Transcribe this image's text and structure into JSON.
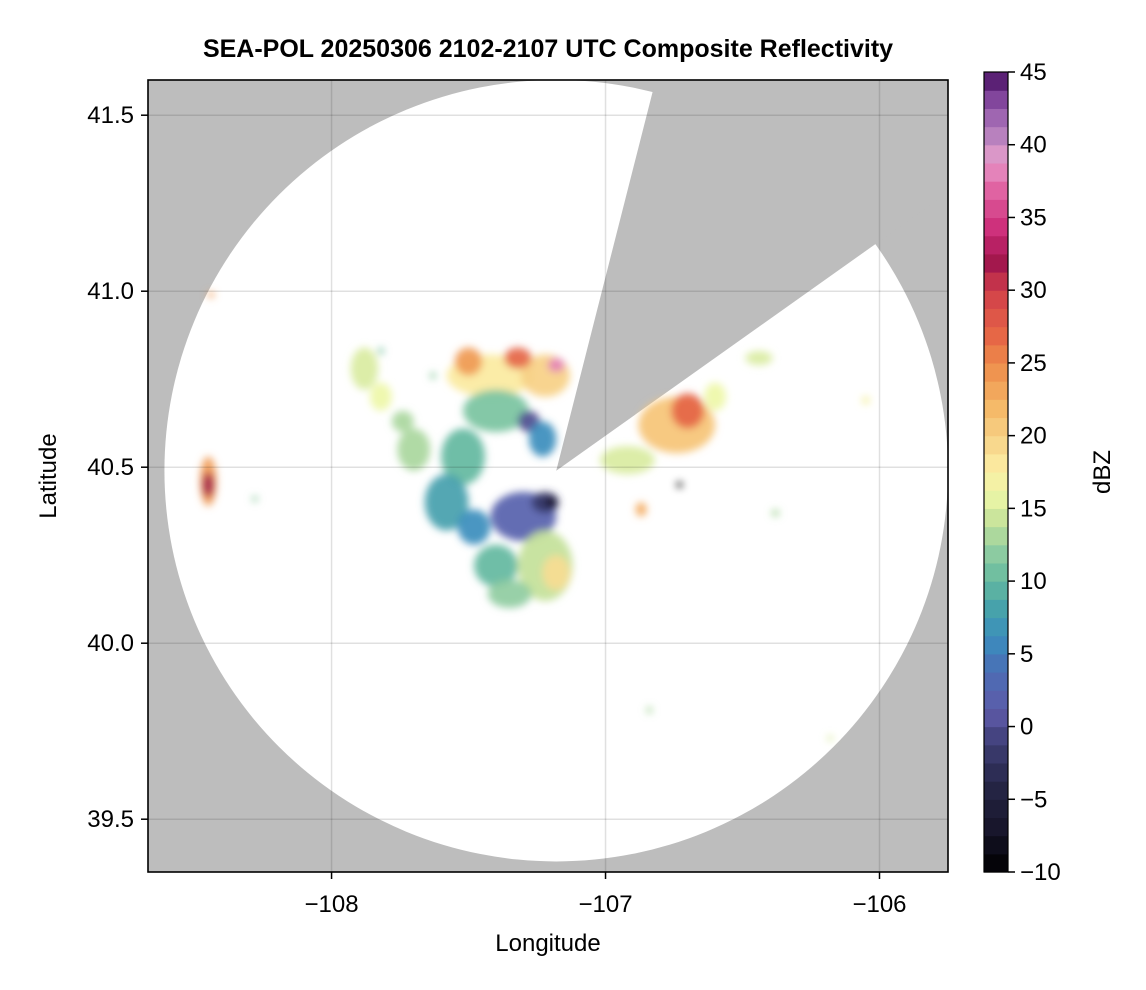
{
  "chart_data": {
    "type": "heatmap",
    "title": "SEA-POL 20250306 2102-2107 UTC Composite Reflectivity",
    "xlabel": "Longitude",
    "ylabel": "Latitude",
    "xlim": [
      -108.67,
      -105.75
    ],
    "ylim": [
      39.35,
      41.6
    ],
    "x_ticks": [
      -108,
      -107,
      -106
    ],
    "x_tick_labels": [
      "−108",
      "−107",
      "−106"
    ],
    "y_ticks": [
      39.5,
      40.0,
      40.5,
      41.0,
      41.5
    ],
    "y_tick_labels": [
      "39.5",
      "40.0",
      "40.5",
      "41.0",
      "41.5"
    ],
    "grid": true,
    "background_color": "#bdbdbd",
    "radar": {
      "center_lon": -107.18,
      "center_lat": 40.49,
      "range_lon": 1.43,
      "range_lat": 1.11,
      "blocked_sectors": [
        {
          "from_lon": -106.84,
          "from_lat": 41.53
        },
        {
          "to_lon": -106.04,
          "to_lat": 41.12
        }
      ]
    },
    "colorbar": {
      "label": "dBZ",
      "range": [
        -10,
        45
      ],
      "ticks": [
        45,
        40,
        35,
        30,
        25,
        20,
        15,
        10,
        5,
        0,
        -5,
        -10
      ],
      "tick_labels": [
        "45",
        "40",
        "35",
        "30",
        "25",
        "20",
        "15",
        "10",
        "5",
        "0",
        "−5",
        "−10"
      ],
      "levels": 44,
      "stops": [
        [
          -10,
          "#000000"
        ],
        [
          -7,
          "#17152b"
        ],
        [
          -4,
          "#262646"
        ],
        [
          -1,
          "#3f3f78"
        ],
        [
          1,
          "#5e5aa8"
        ],
        [
          4,
          "#4a6fb6"
        ],
        [
          6,
          "#3b8dbd"
        ],
        [
          8,
          "#45a0ac"
        ],
        [
          10,
          "#63b99f"
        ],
        [
          12,
          "#8fcca1"
        ],
        [
          14,
          "#c3e199"
        ],
        [
          16,
          "#eef7a8"
        ],
        [
          18,
          "#fbeaa0"
        ],
        [
          20,
          "#f7d085"
        ],
        [
          22,
          "#f5b867"
        ],
        [
          25,
          "#ee8b4a"
        ],
        [
          27,
          "#e56546"
        ],
        [
          30,
          "#d13f4a"
        ],
        [
          32,
          "#a0154d"
        ],
        [
          34,
          "#cb2a76"
        ],
        [
          37,
          "#e165a4"
        ],
        [
          39,
          "#e79bcb"
        ],
        [
          40,
          "#c48fc4"
        ],
        [
          42,
          "#9c63b0"
        ],
        [
          44,
          "#6e2f8c"
        ],
        [
          45,
          "#3a0a4e"
        ]
      ]
    },
    "echo_cells": [
      {
        "lon": -107.42,
        "lat": 40.76,
        "rx": 0.16,
        "ry": 0.06,
        "dbz": 18
      },
      {
        "lon": -107.22,
        "lat": 40.76,
        "rx": 0.09,
        "ry": 0.06,
        "dbz": 20
      },
      {
        "lon": -107.5,
        "lat": 40.8,
        "rx": 0.05,
        "ry": 0.04,
        "dbz": 24
      },
      {
        "lon": -107.32,
        "lat": 40.81,
        "rx": 0.05,
        "ry": 0.03,
        "dbz": 27
      },
      {
        "lon": -107.18,
        "lat": 40.79,
        "rx": 0.03,
        "ry": 0.02,
        "dbz": 38
      },
      {
        "lon": -107.4,
        "lat": 40.66,
        "rx": 0.12,
        "ry": 0.06,
        "dbz": 11
      },
      {
        "lon": -107.28,
        "lat": 40.63,
        "rx": 0.04,
        "ry": 0.03,
        "dbz": 0
      },
      {
        "lon": -107.23,
        "lat": 40.58,
        "rx": 0.05,
        "ry": 0.05,
        "dbz": 6
      },
      {
        "lon": -107.52,
        "lat": 40.53,
        "rx": 0.08,
        "ry": 0.08,
        "dbz": 10
      },
      {
        "lon": -107.7,
        "lat": 40.55,
        "rx": 0.06,
        "ry": 0.06,
        "dbz": 13
      },
      {
        "lon": -107.58,
        "lat": 40.4,
        "rx": 0.08,
        "ry": 0.08,
        "dbz": 8
      },
      {
        "lon": -107.48,
        "lat": 40.33,
        "rx": 0.06,
        "ry": 0.05,
        "dbz": 6
      },
      {
        "lon": -107.3,
        "lat": 40.36,
        "rx": 0.12,
        "ry": 0.07,
        "dbz": 2
      },
      {
        "lon": -107.22,
        "lat": 40.4,
        "rx": 0.05,
        "ry": 0.03,
        "dbz": -2
      },
      {
        "lon": -107.2,
        "lat": 40.4,
        "rx": 0.02,
        "ry": 0.015,
        "dbz": -8
      },
      {
        "lon": -107.4,
        "lat": 40.22,
        "rx": 0.08,
        "ry": 0.06,
        "dbz": 10
      },
      {
        "lon": -107.22,
        "lat": 40.22,
        "rx": 0.1,
        "ry": 0.1,
        "dbz": 14
      },
      {
        "lon": -107.18,
        "lat": 40.2,
        "rx": 0.05,
        "ry": 0.05,
        "dbz": 19
      },
      {
        "lon": -107.35,
        "lat": 40.14,
        "rx": 0.08,
        "ry": 0.04,
        "dbz": 12
      },
      {
        "lon": -107.88,
        "lat": 40.78,
        "rx": 0.05,
        "ry": 0.06,
        "dbz": 15
      },
      {
        "lon": -107.82,
        "lat": 40.7,
        "rx": 0.04,
        "ry": 0.04,
        "dbz": 16
      },
      {
        "lon": -107.74,
        "lat": 40.63,
        "rx": 0.04,
        "ry": 0.03,
        "dbz": 13
      },
      {
        "lon": -106.74,
        "lat": 40.62,
        "rx": 0.14,
        "ry": 0.08,
        "dbz": 21
      },
      {
        "lon": -106.7,
        "lat": 40.66,
        "rx": 0.06,
        "ry": 0.05,
        "dbz": 27
      },
      {
        "lon": -106.92,
        "lat": 40.52,
        "rx": 0.1,
        "ry": 0.04,
        "dbz": 15
      },
      {
        "lon": -106.6,
        "lat": 40.7,
        "rx": 0.04,
        "ry": 0.04,
        "dbz": 16
      },
      {
        "lon": -106.44,
        "lat": 40.81,
        "rx": 0.05,
        "ry": 0.02,
        "dbz": 15
      },
      {
        "lon": -108.45,
        "lat": 40.46,
        "rx": 0.03,
        "ry": 0.07,
        "dbz": 24
      },
      {
        "lon": -108.45,
        "lat": 40.45,
        "rx": 0.02,
        "ry": 0.035,
        "dbz": 32
      },
      {
        "lon": -108.28,
        "lat": 40.41,
        "rx": 0.01,
        "ry": 0.008,
        "dbz": 12
      },
      {
        "lon": -108.44,
        "lat": 40.99,
        "rx": 0.012,
        "ry": 0.008,
        "dbz": 24
      },
      {
        "lon": -106.05,
        "lat": 40.69,
        "rx": 0.015,
        "ry": 0.012,
        "dbz": 17
      },
      {
        "lon": -106.38,
        "lat": 40.37,
        "rx": 0.015,
        "ry": 0.01,
        "dbz": 13
      },
      {
        "lon": -106.87,
        "lat": 40.38,
        "rx": 0.02,
        "ry": 0.02,
        "dbz": 23
      },
      {
        "lon": -106.73,
        "lat": 40.45,
        "rx": 0.008,
        "ry": 0.008,
        "dbz": -10
      },
      {
        "lon": -106.84,
        "lat": 39.81,
        "rx": 0.008,
        "ry": 0.01,
        "dbz": 13
      },
      {
        "lon": -106.18,
        "lat": 39.73,
        "rx": 0.01,
        "ry": 0.006,
        "dbz": 15
      },
      {
        "lon": -107.63,
        "lat": 40.76,
        "rx": 0.01,
        "ry": 0.01,
        "dbz": 12
      },
      {
        "lon": -107.82,
        "lat": 40.83,
        "rx": 0.006,
        "ry": 0.01,
        "dbz": 11
      }
    ]
  }
}
